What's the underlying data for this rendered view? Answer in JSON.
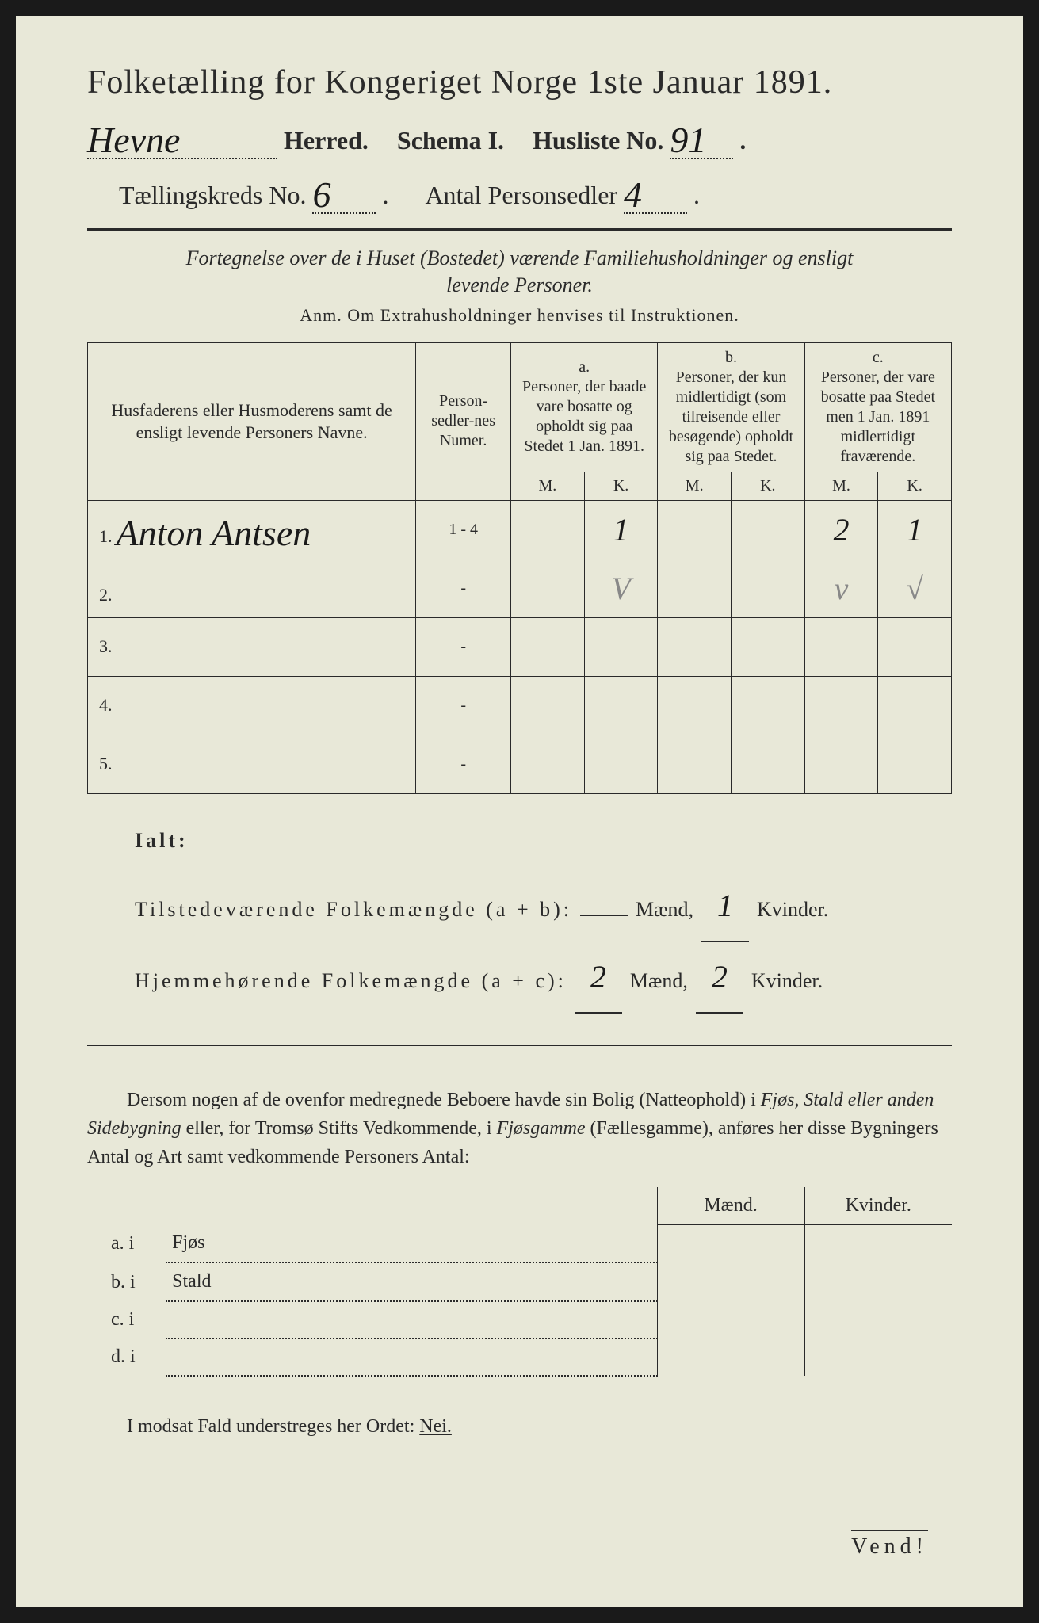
{
  "header": {
    "title": "Folketælling for Kongeriget Norge 1ste Januar 1891.",
    "herred_value": "Hevne",
    "herred_label": "Herred.",
    "schema_label": "Schema I.",
    "husliste_label": "Husliste No.",
    "husliste_value": "91",
    "kreds_label": "Tællingskreds No.",
    "kreds_value": "6",
    "antal_label": "Antal Personsedler",
    "antal_value": "4"
  },
  "description": {
    "line1": "Fortegnelse over de i Huset (Bostedet) værende Familiehusholdninger og ensligt",
    "line2": "levende Personer.",
    "anm": "Anm. Om Extrahusholdninger henvises til Instruktionen."
  },
  "table": {
    "col_name": "Husfaderens eller Husmoderens samt de ensligt levende Personers Navne.",
    "col_num": "Person-sedler-nes Numer.",
    "col_a_label": "a.",
    "col_a": "Personer, der baade vare bosatte og opholdt sig paa Stedet 1 Jan. 1891.",
    "col_b_label": "b.",
    "col_b": "Personer, der kun midlertidigt (som tilreisende eller besøgende) opholdt sig paa Stedet.",
    "col_c_label": "c.",
    "col_c": "Personer, der vare bosatte paa Stedet men 1 Jan. 1891 midlertidigt fraværende.",
    "m": "M.",
    "k": "K.",
    "rows": [
      {
        "n": "1.",
        "name": "Anton Antsen",
        "num": "1 - 4",
        "aM": "",
        "aK": "1",
        "bM": "",
        "bK": "",
        "cM": "2",
        "cK": "1"
      },
      {
        "n": "2.",
        "name": "",
        "num": "-",
        "aM": "",
        "aK": "V",
        "bM": "",
        "bK": "",
        "cM": "v",
        "cK": "√"
      },
      {
        "n": "3.",
        "name": "",
        "num": "-",
        "aM": "",
        "aK": "",
        "bM": "",
        "bK": "",
        "cM": "",
        "cK": ""
      },
      {
        "n": "4.",
        "name": "",
        "num": "-",
        "aM": "",
        "aK": "",
        "bM": "",
        "bK": "",
        "cM": "",
        "cK": ""
      },
      {
        "n": "5.",
        "name": "",
        "num": "-",
        "aM": "",
        "aK": "",
        "bM": "",
        "bK": "",
        "cM": "",
        "cK": ""
      }
    ]
  },
  "totals": {
    "ialt": "Ialt:",
    "tilstede_label": "Tilstedeværende Folkemængde (a + b):",
    "hjemme_label": "Hjemmehørende Folkemængde (a + c):",
    "maend": "Mænd,",
    "kvinder": "Kvinder.",
    "tilstede_m": "",
    "tilstede_k": "1",
    "hjemme_m": "2",
    "hjemme_k": "2"
  },
  "paragraph": {
    "text": "Dersom nogen af de ovenfor medregnede Beboere havde sin Bolig (Natteophold) i Fjøs, Stald eller anden Sidebygning eller, for Tromsø Stifts Vedkommende, i Fjøsgamme (Fællesgamme), anføres her disse Bygningers Antal og Art samt vedkommende Personers Antal:"
  },
  "buildings": {
    "maend": "Mænd.",
    "kvinder": "Kvinder.",
    "rows": [
      {
        "lbl": "a.  i",
        "name": "Fjøs"
      },
      {
        "lbl": "b.  i",
        "name": "Stald"
      },
      {
        "lbl": "c.  i",
        "name": ""
      },
      {
        "lbl": "d.  i",
        "name": ""
      }
    ]
  },
  "footer": {
    "text": "I modsat Fald understreges her Ordet: ",
    "nei": "Nei.",
    "vend": "Vend!"
  },
  "colors": {
    "page_bg": "#e8e8d8",
    "text": "#2a2a2a",
    "body_bg": "#1a1a1a",
    "pencil": "#888888"
  }
}
